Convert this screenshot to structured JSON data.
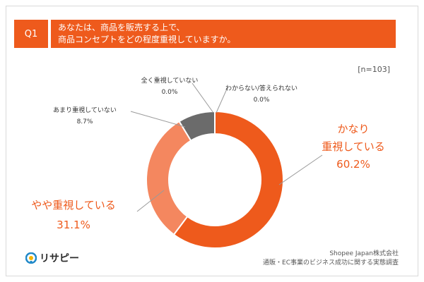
{
  "question": {
    "badge": "Q1",
    "line1": "あなたは、商品を販売する上で、",
    "line2": "商品コンセプトをどの程度重視していますか。"
  },
  "sample_size": "[n=103]",
  "colors": {
    "accent": "#ee5a1c",
    "light": "#f4875f",
    "dark": "#6b6b6b"
  },
  "chart_data": {
    "type": "pie",
    "donut": true,
    "categories": [
      "かなり重視している",
      "やや重視している",
      "あまり重視していない",
      "全く重視していない",
      "わからない/答えられない"
    ],
    "values": [
      60.2,
      31.1,
      8.7,
      0.0,
      0.0
    ],
    "slices": [
      {
        "label_lines": [
          "かなり",
          "重視している"
        ],
        "value_text": "60.2%",
        "color": "#ee5a1c",
        "label_color": "#ee5a1c"
      },
      {
        "label_lines": [
          "やや重視している"
        ],
        "value_text": "31.1%",
        "color": "#f4875f",
        "label_color": "#ee5a1c"
      },
      {
        "label_lines": [
          "あまり重視していない"
        ],
        "value_text": "8.7%",
        "color": "#6b6b6b",
        "label_color": "#333333"
      },
      {
        "label_lines": [
          "全く重視していない"
        ],
        "value_text": "0.0%",
        "color": "#bdbdbd",
        "label_color": "#333333"
      },
      {
        "label_lines": [
          "わからない/答えられない"
        ],
        "value_text": "0.0%",
        "color": "#dddddd",
        "label_color": "#333333"
      }
    ]
  },
  "footer": {
    "logo_text": "リサピー",
    "source_line1": "Shopee Japan株式会社",
    "source_line2": "通販・EC事業のビジネス成功に関する実態調査"
  }
}
